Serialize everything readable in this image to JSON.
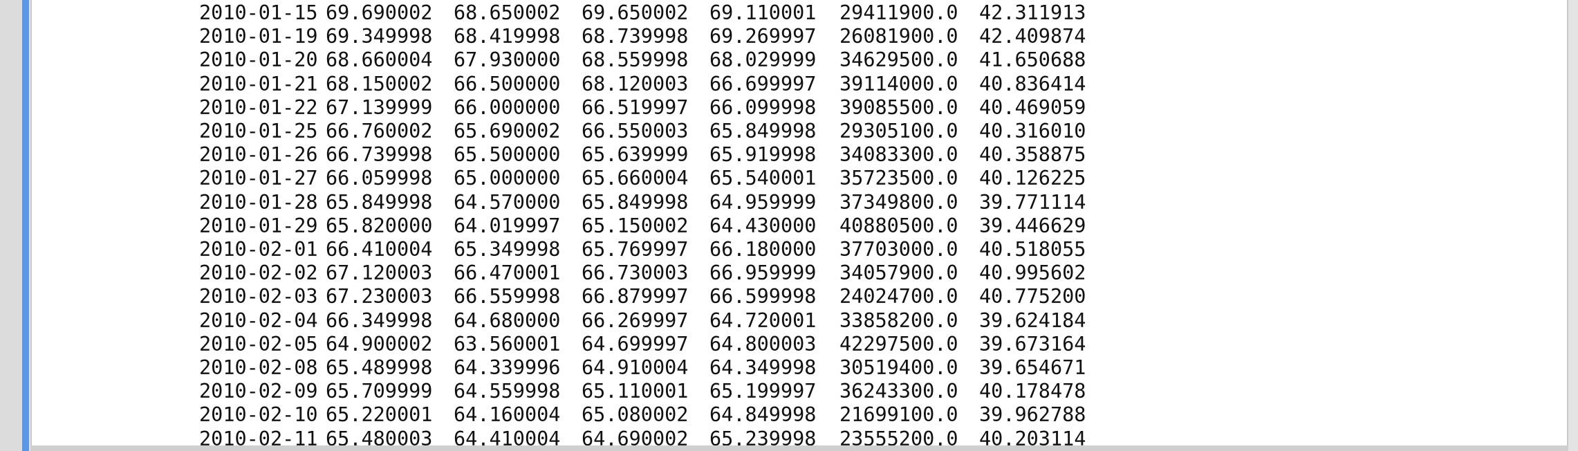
{
  "output_panel": {
    "rows": [
      [
        "2010-01-15",
        "69.690002",
        "68.650002",
        "69.650002",
        "69.110001",
        "29411900.0",
        "42.311913"
      ],
      [
        "2010-01-19",
        "69.349998",
        "68.419998",
        "68.739998",
        "69.269997",
        "26081900.0",
        "42.409874"
      ],
      [
        "2010-01-20",
        "68.660004",
        "67.930000",
        "68.559998",
        "68.029999",
        "34629500.0",
        "41.650688"
      ],
      [
        "2010-01-21",
        "68.150002",
        "66.500000",
        "68.120003",
        "66.699997",
        "39114000.0",
        "40.836414"
      ],
      [
        "2010-01-22",
        "67.139999",
        "66.000000",
        "66.519997",
        "66.099998",
        "39085500.0",
        "40.469059"
      ],
      [
        "2010-01-25",
        "66.760002",
        "65.690002",
        "66.550003",
        "65.849998",
        "29305100.0",
        "40.316010"
      ],
      [
        "2010-01-26",
        "66.739998",
        "65.500000",
        "65.639999",
        "65.919998",
        "34083300.0",
        "40.358875"
      ],
      [
        "2010-01-27",
        "66.059998",
        "65.000000",
        "65.660004",
        "65.540001",
        "35723500.0",
        "40.126225"
      ],
      [
        "2010-01-28",
        "65.849998",
        "64.570000",
        "65.849998",
        "64.959999",
        "37349800.0",
        "39.771114"
      ],
      [
        "2010-01-29",
        "65.820000",
        "64.019997",
        "65.150002",
        "64.430000",
        "40880500.0",
        "39.446629"
      ],
      [
        "2010-02-01",
        "66.410004",
        "65.349998",
        "65.769997",
        "66.180000",
        "37703000.0",
        "40.518055"
      ],
      [
        "2010-02-02",
        "67.120003",
        "66.470001",
        "66.730003",
        "66.959999",
        "34057900.0",
        "40.995602"
      ],
      [
        "2010-02-03",
        "67.230003",
        "66.559998",
        "66.879997",
        "66.599998",
        "24024700.0",
        "40.775200"
      ],
      [
        "2010-02-04",
        "66.349998",
        "64.680000",
        "66.269997",
        "64.720001",
        "33858200.0",
        "39.624184"
      ],
      [
        "2010-02-05",
        "64.900002",
        "63.560001",
        "64.699997",
        "64.800003",
        "42297500.0",
        "39.673164"
      ],
      [
        "2010-02-08",
        "65.489998",
        "64.339996",
        "64.910004",
        "64.349998",
        "30519400.0",
        "39.654671"
      ],
      [
        "2010-02-09",
        "65.709999",
        "64.559998",
        "65.110001",
        "65.199997",
        "36243300.0",
        "40.178478"
      ],
      [
        "2010-02-10",
        "65.220001",
        "64.160004",
        "65.080002",
        "64.849998",
        "21699100.0",
        "39.962788"
      ],
      [
        "2010-02-11",
        "65.480003",
        "64.410004",
        "64.690002",
        "65.239998",
        "23555200.0",
        "40.203114"
      ]
    ]
  },
  "colors": {
    "accent_bar": "#5a98e6",
    "text": "#111111",
    "panel_background": "#ffffff"
  }
}
